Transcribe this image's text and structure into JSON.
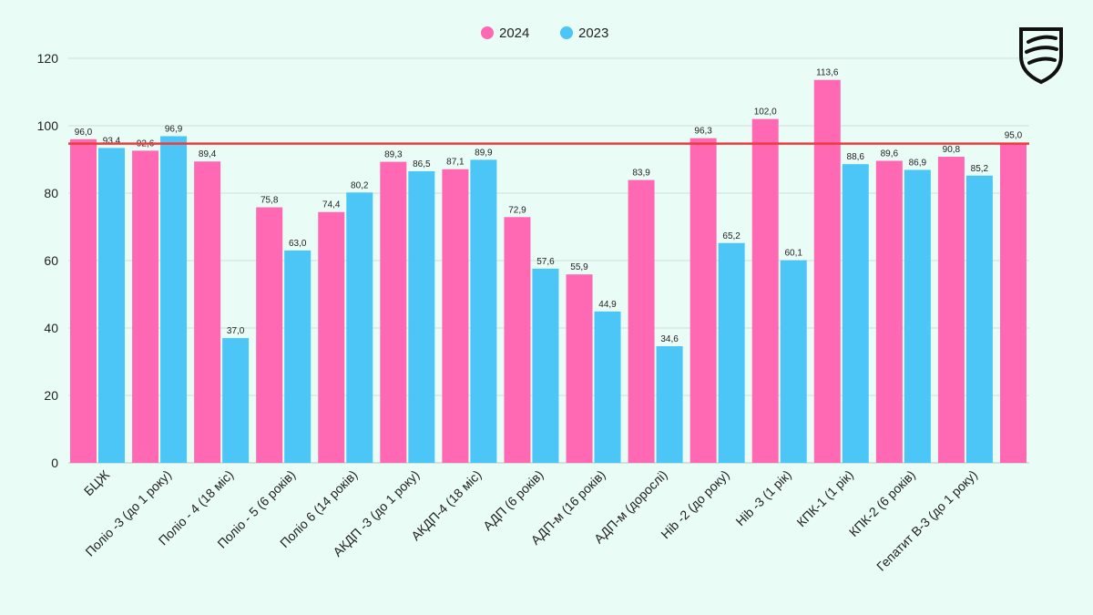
{
  "chart_data": {
    "type": "bar",
    "categories": [
      "БЦЖ",
      "Поліо -3 (до 1 року)",
      "Поліо - 4 (18 міс)",
      "Поліо - 5 (6 років)",
      "Поліо 6 (14 років)",
      "АКДП -3 (до 1 року)",
      "АКДП-4 (18 міс)",
      "АДП (6 років)",
      "АДП-м (16 років)",
      "АДП-м (дорослі)",
      "Hib -2 (до року)",
      "Hib -3 (1 рік)",
      "КПК-1 (1 рік)",
      "КПК-2 (6 років)",
      "Гепатит В-3 (до 1 року)"
    ],
    "series": [
      {
        "name": "2024",
        "color": "#ff69b4",
        "values": [
          96.0,
          92.6,
          89.4,
          75.8,
          74.4,
          89.3,
          87.1,
          72.9,
          55.9,
          83.9,
          96.3,
          102.0,
          113.6,
          89.6,
          90.8
        ],
        "labels": [
          "96,0",
          "92,6",
          "89,4",
          "75,8",
          "74,4",
          "89,3",
          "87,1",
          "72,9",
          "55,9",
          "83,9",
          "96,3",
          "102,0",
          "113,6",
          "89,6",
          "90,8"
        ]
      },
      {
        "name": "2023",
        "color": "#4cc6f6",
        "values": [
          93.4,
          96.9,
          37.0,
          63.0,
          80.2,
          86.5,
          89.9,
          57.6,
          44.9,
          34.6,
          65.2,
          60.1,
          88.6,
          86.9,
          85.2
        ],
        "labels": [
          "93,4",
          "96,9",
          "37,0",
          "63,0",
          "80,2",
          "86,5",
          "89,9",
          "57,6",
          "44,9",
          "34,6",
          "65,2",
          "60,1",
          "88,6",
          "86,9",
          "85,2"
        ]
      }
    ],
    "extra_bar": {
      "series": "2024",
      "value": 95.0,
      "label": "95,0"
    },
    "reference_line": {
      "value": 94.7,
      "color": "#f03a3a"
    },
    "ylim": [
      0,
      120
    ],
    "yticks": [
      "0",
      "20",
      "40",
      "60",
      "80",
      "100",
      "120"
    ],
    "ytick_values": [
      0,
      20,
      40,
      60,
      80,
      100,
      120
    ],
    "grid": true,
    "legend_position": "top-center",
    "title": "",
    "xlabel": "",
    "ylabel": ""
  },
  "logo": {
    "icon": "shield-logo-icon"
  }
}
